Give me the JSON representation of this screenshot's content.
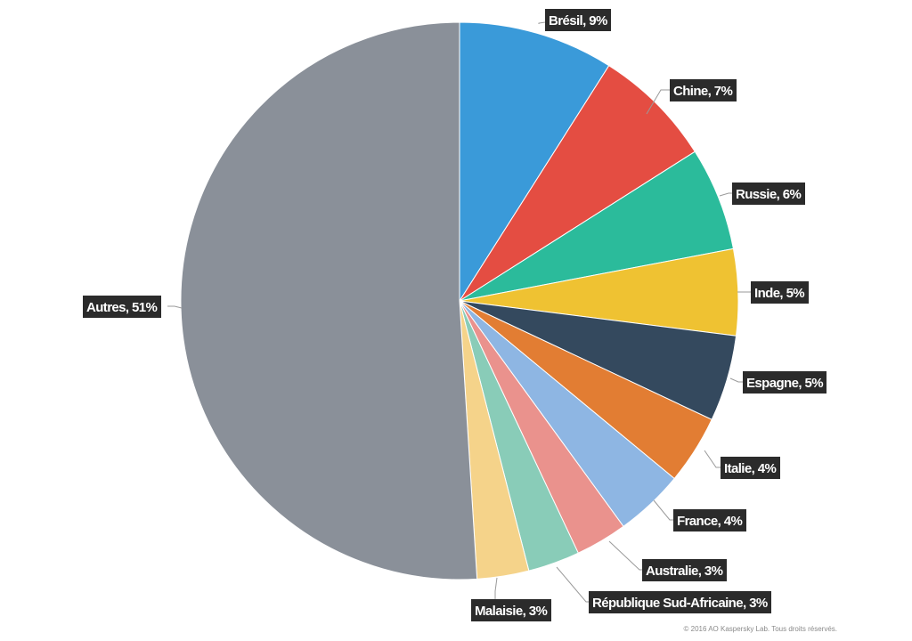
{
  "chart_data": {
    "type": "pie",
    "title": "",
    "legend": "none",
    "slices": [
      {
        "label": "Brésil, 9%",
        "category": "Brésil",
        "value": 9,
        "color": "#3a9ad9"
      },
      {
        "label": "Chine, 7%",
        "category": "Chine",
        "value": 7,
        "color": "#e44d42"
      },
      {
        "label": "Russie, 6%",
        "category": "Russie",
        "value": 6,
        "color": "#2bbb9b"
      },
      {
        "label": "Inde, 5%",
        "category": "Inde",
        "value": 5,
        "color": "#efc232"
      },
      {
        "label": "Espagne, 5%",
        "category": "Espagne",
        "value": 5,
        "color": "#34495e"
      },
      {
        "label": "Italie, 4%",
        "category": "Italie",
        "value": 4,
        "color": "#e27d33"
      },
      {
        "label": "France, 4%",
        "category": "France",
        "value": 4,
        "color": "#8eb6e3"
      },
      {
        "label": "Australie, 3%",
        "category": "Australie",
        "value": 3,
        "color": "#ea928d"
      },
      {
        "label": "République Sud-Africaine, 3%",
        "category": "République Sud-Africaine",
        "value": 3,
        "color": "#89ccb8"
      },
      {
        "label": "Malaisie, 3%",
        "category": "Malaisie",
        "value": 3,
        "color": "#f5d38a"
      },
      {
        "label": "Autres, 51%",
        "category": "Autres",
        "value": 51,
        "color": "#8a9099"
      }
    ]
  },
  "footer": {
    "copyright": "© 2016 AO Kaspersky Lab. Tous droits réservés."
  }
}
